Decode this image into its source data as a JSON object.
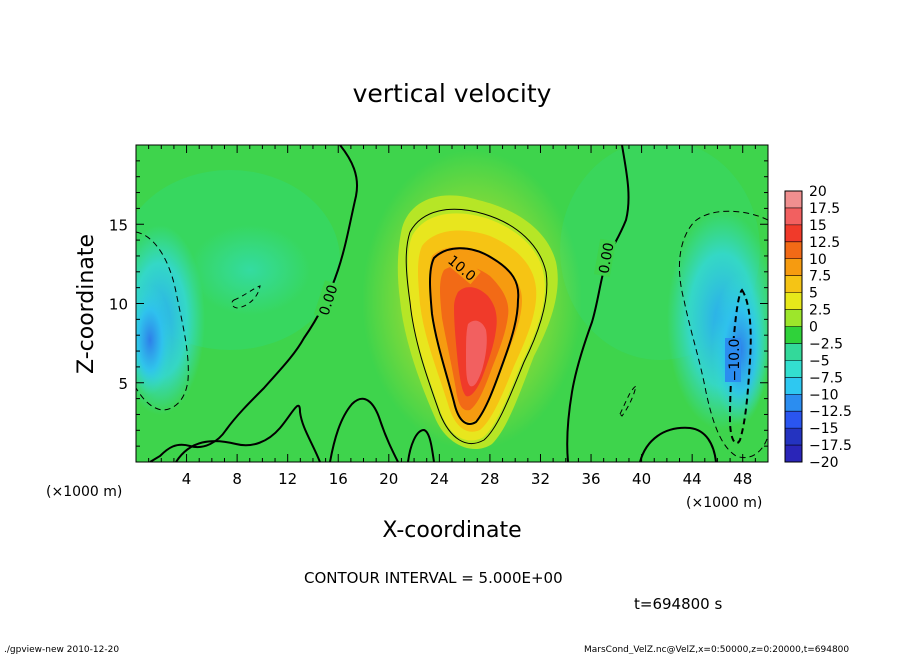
{
  "chart_data": {
    "type": "heatmap",
    "title": "vertical velocity",
    "xlabel": "X-coordinate",
    "ylabel": "Z-coordinate",
    "x_unit": "(×1000 m)",
    "y_unit": "(×1000 m)",
    "xlim": [
      0,
      50
    ],
    "ylim": [
      0,
      20
    ],
    "x_ticks": [
      4,
      8,
      12,
      16,
      20,
      24,
      28,
      32,
      36,
      40,
      44,
      48
    ],
    "y_ticks": [
      5,
      10,
      15
    ],
    "colorbar": {
      "levels": [
        20,
        17.5,
        15,
        12.5,
        10,
        7.5,
        5,
        2.5,
        0,
        -2.5,
        -5,
        -7.5,
        -10,
        -12.5,
        -15,
        -17.5,
        -20
      ],
      "labels": [
        "20",
        "17.5",
        "15",
        "12.5",
        "10",
        "7.5",
        "5",
        "2.5",
        "0",
        "−2.5",
        "−5",
        "−7.5",
        "−10",
        "−12.5",
        "−15",
        "−17.5",
        "−20"
      ],
      "colors": [
        "#f08f8f",
        "#f26060",
        "#f03a2a",
        "#f26a16",
        "#f69b10",
        "#f5c415",
        "#e7e91a",
        "#9de62b",
        "#2fd23a",
        "#33d99a",
        "#33dfd0",
        "#2ec8f1",
        "#2b8df0",
        "#2a55f0",
        "#2433c0",
        "#2a25b8",
        "#7024c4"
      ]
    },
    "features": [
      {
        "kind": "updraft",
        "x": 27,
        "z": 7,
        "peak": 17.5
      },
      {
        "kind": "downdraft",
        "x": 47,
        "z": 7,
        "peak": -12.5
      },
      {
        "kind": "downdraft",
        "x": 0.5,
        "z": 8,
        "peak": -7.5
      }
    ],
    "contour_labels": [
      {
        "text": "0.00",
        "x": 15.5,
        "z": 10
      },
      {
        "text": "10.0",
        "x": 25.5,
        "z": 12
      },
      {
        "text": "0.00",
        "x": 37.5,
        "z": 13
      },
      {
        "text": "−10.0",
        "x": 47.2,
        "z": 7
      }
    ],
    "contour_interval_label": "CONTOUR INTERVAL = 5.000E+00",
    "time_label": "t=694800 s",
    "footer_left": "./gpview-new   2010-12-20",
    "footer_right": "MarsCond_VelZ.nc@VelZ,x=0:50000,z=0:20000,t=694800"
  }
}
